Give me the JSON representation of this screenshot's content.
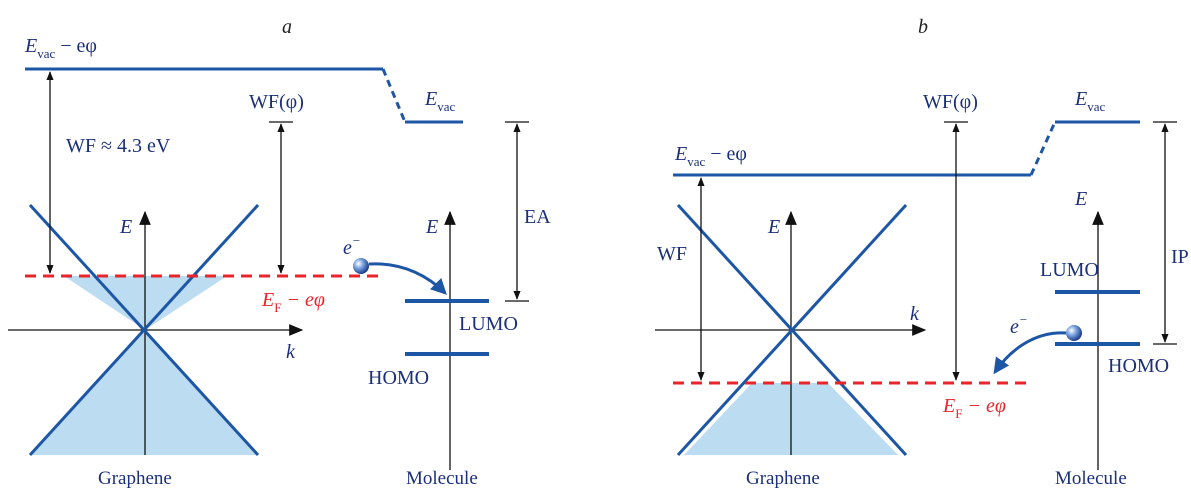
{
  "panel_a": {
    "letter": "a",
    "vac_shifted_E": "E",
    "vac_shifted_sub": "vac",
    "vac_shifted_rest": " − eφ",
    "vac_mol_E": "E",
    "vac_mol_sub": "vac",
    "wf_label": "WF ≈ 4.3 eV",
    "wf_phi_label": "WF(φ)",
    "ea_label": "EA",
    "energy_axis_graphene": "E",
    "energy_axis_molecule": "E",
    "k_axis": "k",
    "electron_label": "e",
    "electron_sup": "−",
    "fermi_E": "E",
    "fermi_sub": "F",
    "fermi_rest": " − eφ",
    "lumo": "LUMO",
    "homo": "HOMO",
    "graphene_caption": "Graphene",
    "molecule_caption": "Molecule"
  },
  "panel_b": {
    "letter": "b",
    "vac_shifted_E": "E",
    "vac_shifted_sub": "vac",
    "vac_shifted_rest": " − eφ",
    "vac_mol_E": "E",
    "vac_mol_sub": "vac",
    "wf_label": "WF",
    "wf_phi_label": "WF(φ)",
    "ip_label": "IP",
    "energy_axis_graphene": "E",
    "energy_axis_molecule": "E",
    "k_axis": "k",
    "electron_label": "e",
    "electron_sup": "−",
    "fermi_E": "E",
    "fermi_sub": "F",
    "fermi_rest": " − eφ",
    "lumo": "LUMO",
    "homo": "HOMO",
    "graphene_caption": "Graphene",
    "molecule_caption": "Molecule"
  },
  "colors": {
    "level_blue": "#1e56a6",
    "text_navy": "#1b2f7a",
    "fermi_red": "#e8252b",
    "fill_light_blue": "#bcdcf2",
    "arrow_black": "#111111"
  }
}
